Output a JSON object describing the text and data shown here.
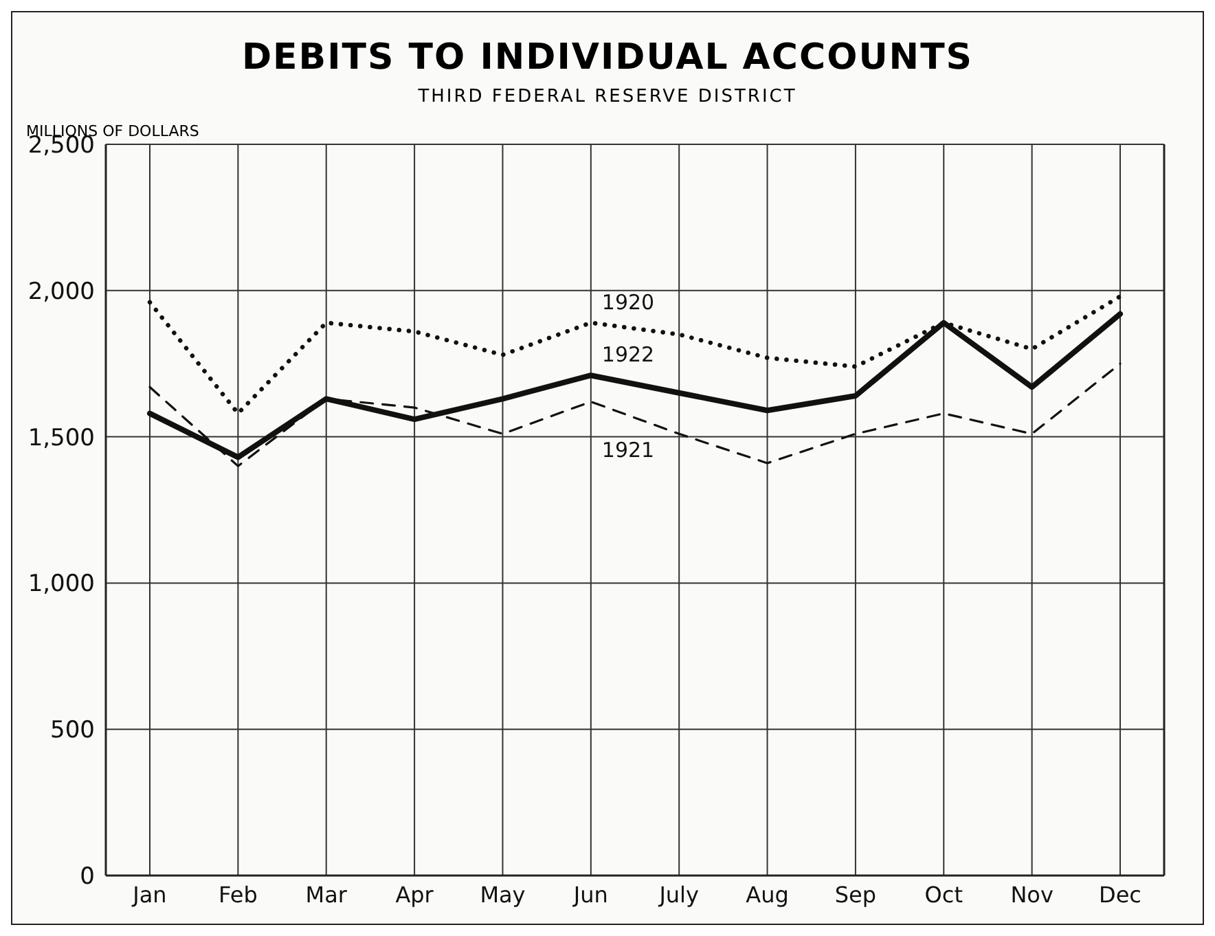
{
  "chart_data": {
    "type": "line",
    "title": "DEBITS TO INDIVIDUAL ACCOUNTS",
    "subtitle": "THIRD FEDERAL RESERVE DISTRICT",
    "ylabel": "MILLIONS OF DOLLARS",
    "categories": [
      "Jan",
      "Feb",
      "Mar",
      "Apr",
      "May",
      "Jun",
      "July",
      "Aug",
      "Sep",
      "Oct",
      "Nov",
      "Dec"
    ],
    "series": [
      {
        "name": "1920",
        "color": "#111111",
        "line_style": "dotted",
        "values": [
          1960,
          1580,
          1890,
          1860,
          1780,
          1890,
          1850,
          1770,
          1740,
          1890,
          1800,
          1980
        ]
      },
      {
        "name": "1921",
        "color": "#111111",
        "line_style": "dashed",
        "values": [
          1670,
          1400,
          1630,
          1600,
          1510,
          1620,
          1510,
          1410,
          1510,
          1580,
          1510,
          1750
        ]
      },
      {
        "name": "1922",
        "color": "#111111",
        "line_style": "solid",
        "values": [
          1580,
          1430,
          1630,
          1560,
          1630,
          1710,
          1650,
          1590,
          1640,
          1890,
          1670,
          1920
        ]
      }
    ],
    "ylim": [
      0,
      2500
    ],
    "yticks": [
      0,
      500,
      {
        "value": 1000,
        "label": "1,000"
      },
      {
        "value": 1500,
        "label": "1,500"
      },
      {
        "value": 2000,
        "label": "2,000"
      },
      {
        "value": 2500,
        "label": "2,500"
      }
    ],
    "grid": true,
    "legend": false,
    "marker": "none"
  }
}
